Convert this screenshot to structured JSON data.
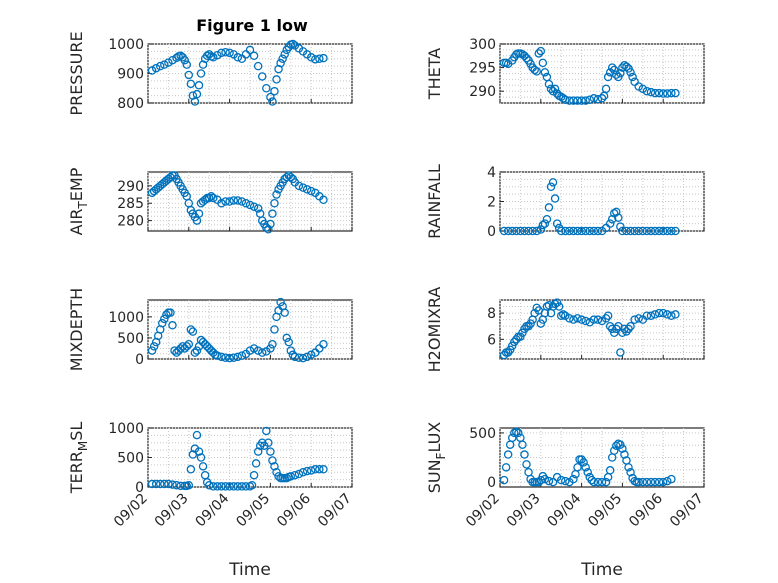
{
  "figure": {
    "title": "Figure 1 low"
  },
  "chart_data": [
    {
      "id": "pressure",
      "type": "scatter",
      "title": "Figure 1 low",
      "ylabel": "PRESSURE",
      "ylabel_sub": "",
      "xlabel": "",
      "xlim": [
        "09/02",
        "09/07"
      ],
      "ylim": [
        800,
        1000
      ],
      "yticks": [
        800,
        900,
        1000
      ],
      "xticks": [
        "09/02",
        "09/03",
        "09/04",
        "09/05",
        "09/06",
        "09/07"
      ],
      "grid": true,
      "color": "#0072bd",
      "x_days": [
        0.1,
        0.2,
        0.3,
        0.4,
        0.5,
        0.6,
        0.7,
        0.75,
        0.8,
        0.85,
        0.9,
        0.95,
        1.0,
        1.05,
        1.1,
        1.15,
        1.2,
        1.25,
        1.3,
        1.35,
        1.4,
        1.45,
        1.5,
        1.55,
        1.6,
        1.7,
        1.8,
        1.9,
        2.0,
        2.1,
        2.2,
        2.3,
        2.4,
        2.5,
        2.6,
        2.7,
        2.8,
        2.9,
        3.0,
        3.05,
        3.1,
        3.15,
        3.2,
        3.25,
        3.3,
        3.35,
        3.4,
        3.45,
        3.5,
        3.55,
        3.6,
        3.7,
        3.8,
        3.9,
        4.0,
        4.1,
        4.2,
        4.3
      ],
      "values": [
        910,
        918,
        925,
        930,
        937,
        945,
        953,
        958,
        960,
        955,
        945,
        930,
        895,
        865,
        825,
        805,
        830,
        860,
        900,
        930,
        950,
        960,
        965,
        958,
        955,
        962,
        970,
        972,
        970,
        965,
        955,
        950,
        965,
        980,
        960,
        925,
        890,
        850,
        820,
        805,
        840,
        880,
        915,
        935,
        950,
        965,
        980,
        990,
        998,
        1000,
        995,
        985,
        975,
        965,
        955,
        948,
        950,
        952
      ]
    },
    {
      "id": "theta",
      "type": "scatter",
      "ylabel": "THETA",
      "ylabel_sub": "",
      "xlabel": "",
      "xlim": [
        "09/02",
        "09/07"
      ],
      "ylim": [
        287.5,
        300
      ],
      "yticks": [
        290,
        295,
        300
      ],
      "xticks": [
        "09/02",
        "09/03",
        "09/04",
        "09/05",
        "09/06",
        "09/07"
      ],
      "grid": true,
      "color": "#0072bd",
      "x_days": [
        0.1,
        0.15,
        0.2,
        0.3,
        0.35,
        0.4,
        0.45,
        0.5,
        0.55,
        0.6,
        0.65,
        0.7,
        0.75,
        0.8,
        0.85,
        0.9,
        0.95,
        1.0,
        1.05,
        1.1,
        1.15,
        1.2,
        1.25,
        1.3,
        1.35,
        1.4,
        1.45,
        1.5,
        1.55,
        1.6,
        1.7,
        1.8,
        1.9,
        2.0,
        2.1,
        2.2,
        2.3,
        2.4,
        2.5,
        2.55,
        2.6,
        2.65,
        2.7,
        2.75,
        2.8,
        2.85,
        2.9,
        2.95,
        3.0,
        3.05,
        3.1,
        3.15,
        3.2,
        3.25,
        3.3,
        3.4,
        3.5,
        3.6,
        3.7,
        3.8,
        3.9,
        4.0,
        4.1,
        4.2,
        4.3
      ],
      "values": [
        296,
        296,
        295.8,
        296.5,
        297.2,
        297.8,
        298,
        298,
        297.8,
        297.5,
        297,
        296.5,
        295.8,
        295,
        294.5,
        294.2,
        298,
        298.5,
        296,
        294,
        293,
        291.5,
        290.5,
        290,
        290.5,
        289.5,
        289,
        288.8,
        288.5,
        288.2,
        288,
        288,
        288,
        288,
        288,
        288.2,
        288.5,
        288.3,
        288.5,
        289,
        290.5,
        293,
        294,
        295,
        294.5,
        293.5,
        293,
        293.8,
        295,
        295.5,
        295.2,
        294.8,
        294,
        293,
        292,
        291,
        290.5,
        290,
        289.8,
        289.6,
        289.6,
        289.5,
        289.5,
        289.6,
        289.6
      ]
    },
    {
      "id": "air_temp",
      "type": "scatter",
      "ylabel": "AIR",
      "ylabel_sub": "T",
      "ylabel_rest": "EMP",
      "xlabel": "",
      "xlim": [
        "09/02",
        "09/07"
      ],
      "ylim": [
        277,
        294
      ],
      "yticks": [
        280,
        285,
        290
      ],
      "xticks": [
        "09/02",
        "09/03",
        "09/04",
        "09/05",
        "09/06",
        "09/07"
      ],
      "grid": true,
      "color": "#0072bd",
      "x_days": [
        0.1,
        0.15,
        0.2,
        0.25,
        0.3,
        0.35,
        0.4,
        0.45,
        0.5,
        0.55,
        0.6,
        0.65,
        0.7,
        0.75,
        0.8,
        0.85,
        0.9,
        0.95,
        1.0,
        1.05,
        1.1,
        1.15,
        1.2,
        1.25,
        1.3,
        1.35,
        1.4,
        1.45,
        1.5,
        1.55,
        1.6,
        1.7,
        1.8,
        1.9,
        2.0,
        2.1,
        2.2,
        2.3,
        2.4,
        2.5,
        2.6,
        2.7,
        2.75,
        2.8,
        2.85,
        2.9,
        2.95,
        3.0,
        3.05,
        3.1,
        3.15,
        3.2,
        3.25,
        3.3,
        3.35,
        3.4,
        3.45,
        3.5,
        3.55,
        3.6,
        3.7,
        3.8,
        3.9,
        4.0,
        4.1,
        4.2,
        4.3
      ],
      "values": [
        288,
        288.5,
        289,
        289.5,
        290,
        290.5,
        291,
        291.5,
        292,
        292.5,
        293,
        293,
        292,
        291,
        290,
        289,
        288,
        287,
        285,
        283,
        282,
        281,
        280,
        282,
        285,
        285.5,
        286,
        286.5,
        286.5,
        287,
        286.5,
        286,
        285,
        285.5,
        285.5,
        285.8,
        285.8,
        285.5,
        285,
        284.5,
        284,
        283.5,
        282,
        280,
        279,
        278,
        277.5,
        279,
        282,
        285,
        287.5,
        289,
        290,
        291,
        292,
        292.5,
        293,
        292.5,
        292,
        291,
        290,
        289.5,
        289,
        288.5,
        288,
        287,
        286
      ]
    },
    {
      "id": "rainfall",
      "type": "scatter",
      "ylabel": "RAINFALL",
      "ylabel_sub": "",
      "xlabel": "",
      "xlim": [
        "09/02",
        "09/07"
      ],
      "ylim": [
        0,
        4
      ],
      "yticks": [
        0,
        2,
        4
      ],
      "xticks": [
        "09/02",
        "09/03",
        "09/04",
        "09/05",
        "09/06",
        "09/07"
      ],
      "grid": true,
      "color": "#0072bd",
      "x_days": [
        0.1,
        0.2,
        0.3,
        0.4,
        0.5,
        0.6,
        0.7,
        0.8,
        0.9,
        1.0,
        1.05,
        1.1,
        1.15,
        1.2,
        1.25,
        1.3,
        1.35,
        1.4,
        1.45,
        1.5,
        1.6,
        1.7,
        1.8,
        1.9,
        2.0,
        2.1,
        2.2,
        2.3,
        2.4,
        2.5,
        2.6,
        2.7,
        2.75,
        2.8,
        2.85,
        2.9,
        2.95,
        3.0,
        3.1,
        3.2,
        3.3,
        3.4,
        3.5,
        3.6,
        3.7,
        3.8,
        3.9,
        4.0,
        4.1,
        4.2,
        4.3
      ],
      "values": [
        0,
        0,
        0,
        0,
        0,
        0,
        0,
        0,
        0,
        0.1,
        0.4,
        0.5,
        0.8,
        1.6,
        3.0,
        3.3,
        2.2,
        0.5,
        0.2,
        0,
        0,
        0,
        0,
        0,
        0,
        0,
        0,
        0,
        0,
        0,
        0.2,
        0.5,
        0.8,
        1.2,
        1.3,
        0.9,
        0.3,
        0,
        0,
        0,
        0,
        0,
        0,
        0,
        0,
        0,
        0,
        0,
        0,
        0,
        0
      ]
    },
    {
      "id": "mixdepth",
      "type": "scatter",
      "ylabel": "MIXDEPTH",
      "ylabel_sub": "",
      "xlabel": "",
      "xlim": [
        "09/02",
        "09/07"
      ],
      "ylim": [
        0,
        1400
      ],
      "yticks": [
        0,
        500,
        1000
      ],
      "xticks": [
        "09/02",
        "09/03",
        "09/04",
        "09/05",
        "09/06",
        "09/07"
      ],
      "grid": true,
      "color": "#0072bd",
      "x_days": [
        0.1,
        0.15,
        0.2,
        0.25,
        0.3,
        0.35,
        0.4,
        0.45,
        0.5,
        0.55,
        0.6,
        0.65,
        0.7,
        0.75,
        0.8,
        0.85,
        0.9,
        0.95,
        1.0,
        1.05,
        1.1,
        1.15,
        1.2,
        1.25,
        1.3,
        1.35,
        1.4,
        1.45,
        1.5,
        1.55,
        1.6,
        1.65,
        1.7,
        1.8,
        1.9,
        2.0,
        2.1,
        2.2,
        2.3,
        2.4,
        2.5,
        2.6,
        2.7,
        2.8,
        2.9,
        3.0,
        3.05,
        3.1,
        3.15,
        3.2,
        3.25,
        3.3,
        3.35,
        3.4,
        3.45,
        3.5,
        3.55,
        3.6,
        3.7,
        3.8,
        3.9,
        4.0,
        4.1,
        4.2,
        4.3
      ],
      "values": [
        200,
        300,
        400,
        550,
        700,
        850,
        950,
        1050,
        1100,
        1100,
        800,
        200,
        150,
        200,
        250,
        300,
        250,
        300,
        350,
        700,
        650,
        150,
        200,
        300,
        450,
        400,
        350,
        300,
        250,
        200,
        150,
        100,
        80,
        50,
        30,
        20,
        30,
        50,
        80,
        120,
        200,
        250,
        200,
        150,
        180,
        250,
        350,
        700,
        1000,
        1150,
        1350,
        1250,
        1100,
        500,
        400,
        200,
        100,
        50,
        30,
        20,
        50,
        100,
        150,
        250,
        350
      ]
    },
    {
      "id": "h2omixra",
      "type": "scatter",
      "ylabel": "H2OMIXRA",
      "ylabel_sub": "",
      "xlabel": "",
      "xlim": [
        "09/02",
        "09/07"
      ],
      "ylim": [
        4.5,
        9
      ],
      "yticks": [
        6,
        8
      ],
      "xticks": [
        "09/02",
        "09/03",
        "09/04",
        "09/05",
        "09/06",
        "09/07"
      ],
      "grid": true,
      "color": "#0072bd",
      "x_days": [
        0.1,
        0.15,
        0.2,
        0.25,
        0.3,
        0.35,
        0.4,
        0.45,
        0.5,
        0.55,
        0.6,
        0.65,
        0.7,
        0.75,
        0.8,
        0.85,
        0.9,
        0.95,
        1.0,
        1.05,
        1.1,
        1.15,
        1.2,
        1.25,
        1.3,
        1.35,
        1.4,
        1.45,
        1.5,
        1.55,
        1.6,
        1.7,
        1.8,
        1.9,
        2.0,
        2.1,
        2.2,
        2.3,
        2.4,
        2.5,
        2.6,
        2.65,
        2.7,
        2.75,
        2.8,
        2.85,
        2.9,
        2.95,
        3.0,
        3.05,
        3.1,
        3.15,
        3.2,
        3.3,
        3.4,
        3.5,
        3.6,
        3.7,
        3.8,
        3.9,
        4.0,
        4.1,
        4.2,
        4.3
      ],
      "values": [
        4.8,
        5.0,
        5.0,
        5.2,
        5.5,
        5.8,
        6.0,
        6.2,
        6.2,
        6.5,
        6.8,
        7.0,
        7.0,
        7.2,
        7.5,
        8.0,
        8.4,
        8.2,
        7.2,
        7.5,
        8.0,
        8.5,
        8.6,
        8.0,
        8.5,
        8.7,
        8.8,
        8.5,
        7.8,
        7.9,
        7.8,
        7.6,
        7.5,
        7.6,
        7.5,
        7.4,
        7.3,
        7.5,
        7.5,
        7.4,
        7.6,
        7.8,
        7.0,
        6.8,
        6.5,
        6.8,
        7.0,
        5.0,
        6.5,
        6.8,
        6.6,
        6.8,
        7.0,
        7.5,
        7.6,
        7.5,
        7.8,
        7.8,
        7.9,
        8.0,
        8.0,
        7.9,
        7.8,
        7.9
      ]
    },
    {
      "id": "terr_msl",
      "type": "scatter",
      "ylabel": "TERR",
      "ylabel_sub": "M",
      "ylabel_rest": "SL",
      "xlabel": "Time",
      "xlim": [
        "09/02",
        "09/07"
      ],
      "ylim": [
        0,
        1000
      ],
      "yticks": [
        0,
        500,
        1000
      ],
      "xticks": [
        "09/02",
        "09/03",
        "09/04",
        "09/05",
        "09/06",
        "09/07"
      ],
      "grid": true,
      "color": "#0072bd",
      "x_days": [
        0.1,
        0.2,
        0.3,
        0.4,
        0.5,
        0.6,
        0.7,
        0.8,
        0.9,
        0.95,
        1.0,
        1.05,
        1.1,
        1.15,
        1.2,
        1.25,
        1.3,
        1.35,
        1.4,
        1.45,
        1.5,
        1.6,
        1.7,
        1.8,
        1.9,
        2.0,
        2.1,
        2.2,
        2.3,
        2.4,
        2.5,
        2.55,
        2.6,
        2.65,
        2.7,
        2.75,
        2.8,
        2.85,
        2.9,
        2.95,
        3.0,
        3.05,
        3.1,
        3.15,
        3.2,
        3.25,
        3.3,
        3.35,
        3.4,
        3.45,
        3.5,
        3.6,
        3.7,
        3.8,
        3.9,
        4.0,
        4.1,
        4.2,
        4.3
      ],
      "values": [
        50,
        50,
        50,
        50,
        50,
        40,
        30,
        20,
        20,
        20,
        30,
        300,
        550,
        650,
        880,
        600,
        500,
        350,
        200,
        80,
        30,
        10,
        10,
        10,
        10,
        10,
        10,
        10,
        10,
        10,
        10,
        30,
        200,
        400,
        600,
        700,
        750,
        700,
        950,
        750,
        600,
        450,
        350,
        250,
        180,
        150,
        150,
        150,
        150,
        170,
        180,
        200,
        220,
        250,
        270,
        280,
        300,
        300,
        300
      ]
    },
    {
      "id": "sun_flux",
      "type": "scatter",
      "ylabel": "SUN",
      "ylabel_sub": "F",
      "ylabel_rest": "LUX",
      "xlabel": "Time",
      "xlim": [
        "09/02",
        "09/07"
      ],
      "ylim": [
        -50,
        550
      ],
      "yticks": [
        0,
        500
      ],
      "xticks": [
        "09/02",
        "09/03",
        "09/04",
        "09/05",
        "09/06",
        "09/07"
      ],
      "grid": true,
      "color": "#0072bd",
      "x_days": [
        0.1,
        0.15,
        0.2,
        0.25,
        0.3,
        0.35,
        0.4,
        0.45,
        0.5,
        0.55,
        0.6,
        0.65,
        0.7,
        0.75,
        0.8,
        0.85,
        0.9,
        0.95,
        1.0,
        1.05,
        1.1,
        1.2,
        1.3,
        1.4,
        1.5,
        1.6,
        1.7,
        1.8,
        1.85,
        1.9,
        1.95,
        2.0,
        2.05,
        2.1,
        2.15,
        2.2,
        2.25,
        2.3,
        2.4,
        2.5,
        2.6,
        2.65,
        2.7,
        2.75,
        2.8,
        2.85,
        2.9,
        2.95,
        3.0,
        3.05,
        3.1,
        3.15,
        3.2,
        3.25,
        3.3,
        3.35,
        3.4,
        3.5,
        3.6,
        3.7,
        3.8,
        3.9,
        4.0,
        4.1,
        4.2
      ],
      "values": [
        20,
        150,
        280,
        380,
        450,
        500,
        510,
        500,
        450,
        380,
        280,
        180,
        100,
        30,
        0,
        0,
        0,
        0,
        20,
        60,
        30,
        10,
        0,
        50,
        20,
        10,
        0,
        30,
        80,
        150,
        230,
        230,
        200,
        150,
        100,
        50,
        20,
        0,
        0,
        0,
        0,
        50,
        120,
        250,
        320,
        370,
        390,
        380,
        340,
        280,
        220,
        150,
        100,
        40,
        10,
        0,
        0,
        0,
        0,
        0,
        0,
        0,
        0,
        10,
        30
      ]
    }
  ]
}
